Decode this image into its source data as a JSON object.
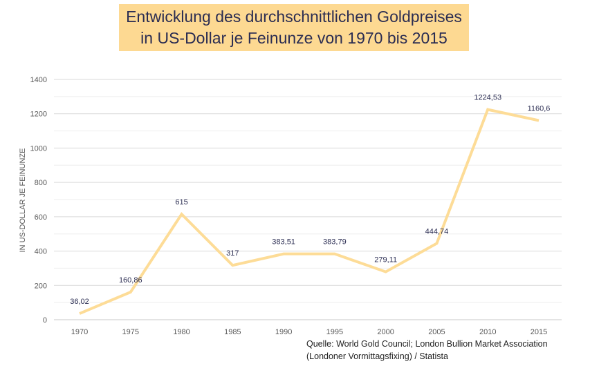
{
  "chart_data": {
    "type": "line",
    "title": [
      "Entwicklung des durchschnittlichen Goldpreises",
      "in US-Dollar je Feinunze von 1970 bis 2015"
    ],
    "xlabel": "",
    "ylabel": "IN US-DOLLAR JE FEINUNZE",
    "ylim": [
      0,
      1400
    ],
    "yticks": [
      0,
      200,
      400,
      600,
      800,
      1000,
      1200,
      1400
    ],
    "grid": true,
    "categories": [
      "1970",
      "1975",
      "1980",
      "1985",
      "1990",
      "1995",
      "2000",
      "2005",
      "2010",
      "2015"
    ],
    "values": [
      36.02,
      160.86,
      615,
      317,
      383.51,
      383.79,
      279.11,
      444.74,
      1224.53,
      1160.6
    ],
    "data_labels": [
      "36,02",
      "160,86",
      "615",
      "317",
      "383,51",
      "383,79",
      "279,11",
      "444,74",
      "1224,53",
      "1160,6"
    ],
    "line_color": "#fddc97",
    "label_color": "#2b2d52"
  },
  "source": [
    "Quelle: World Gold Council; London Bullion Market Association",
    "(Londoner Vormittagsfixing) / Statista"
  ]
}
